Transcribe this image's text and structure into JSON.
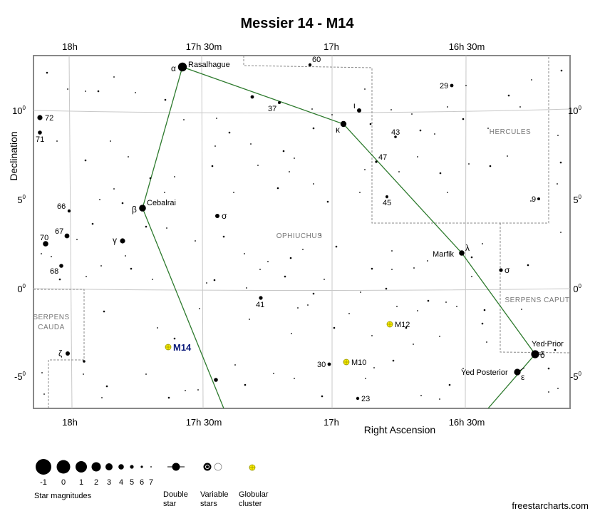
{
  "title": "Messier 14 - M14",
  "x_axis": {
    "label": "Right Ascension",
    "ticks": [
      {
        "label": "18h",
        "x": 98
      },
      {
        "label": "17h 30m",
        "x": 286
      },
      {
        "label": "17h",
        "x": 465
      },
      {
        "label": "16h 30m",
        "x": 655
      }
    ]
  },
  "y_axis": {
    "label": "Declination",
    "ticks": [
      {
        "label": "10",
        "y": 155
      },
      {
        "label": "5",
        "y": 280
      },
      {
        "label": "0",
        "y": 405
      },
      {
        "label": "-5",
        "y": 528
      }
    ],
    "degree_symbol": "0"
  },
  "constellations": [
    {
      "key": "ophiuchus",
      "lines": [
        "OPHIUCHUS"
      ]
    },
    {
      "key": "hercules",
      "lines": [
        "HERCULES"
      ]
    },
    {
      "key": "serpens-caput",
      "lines": [
        "SERPENS CAPUT"
      ]
    },
    {
      "key": "serpens-cauda",
      "lines": [
        "SERPENS",
        "CAUDA"
      ]
    }
  ],
  "star_labels": [
    {
      "key": "rasalhague",
      "text": "Rasalhague"
    },
    {
      "key": "alpha",
      "text": "α"
    },
    {
      "key": "cebalrai",
      "text": "Cebalrai"
    },
    {
      "key": "beta",
      "text": "β"
    },
    {
      "key": "marfik",
      "text": "Marfik"
    },
    {
      "key": "lambda",
      "text": "λ"
    },
    {
      "key": "yed-prior",
      "text": "Yed Prior"
    },
    {
      "key": "delta",
      "text": "δ"
    },
    {
      "key": "yed-posterior",
      "text": "Yed Posterior"
    },
    {
      "key": "epsilon",
      "text": "ε"
    },
    {
      "key": "kappa",
      "text": "κ"
    },
    {
      "key": "iota",
      "text": "ι"
    },
    {
      "key": "gamma",
      "text": "γ"
    },
    {
      "key": "sigma-oph",
      "text": "σ"
    },
    {
      "key": "sigma-ser",
      "text": "σ"
    },
    {
      "key": "zeta",
      "text": "ζ"
    },
    {
      "key": "n60",
      "text": "60"
    },
    {
      "key": "n37",
      "text": "37"
    },
    {
      "key": "n29",
      "text": "29"
    },
    {
      "key": "n43",
      "text": "43"
    },
    {
      "key": "n47",
      "text": "47"
    },
    {
      "key": "n45",
      "text": "45"
    },
    {
      "key": "n9",
      "text": "9"
    },
    {
      "key": "n72",
      "text": "72"
    },
    {
      "key": "n71",
      "text": "71"
    },
    {
      "key": "n66",
      "text": "66"
    },
    {
      "key": "n67",
      "text": "67"
    },
    {
      "key": "n70",
      "text": "70"
    },
    {
      "key": "n68",
      "text": "68"
    },
    {
      "key": "n41",
      "text": "41"
    },
    {
      "key": "n30",
      "text": "30"
    },
    {
      "key": "n23",
      "text": "23"
    }
  ],
  "deep_sky_objects": [
    {
      "key": "m14",
      "text": "M14",
      "type": "Globular cluster",
      "highlight": true
    },
    {
      "key": "m12",
      "text": "M12",
      "type": "Globular cluster",
      "highlight": false
    },
    {
      "key": "m10",
      "text": "M10",
      "type": "Globular cluster",
      "highlight": false
    }
  ],
  "legend": {
    "magnitudes_title": "Star magnitudes",
    "magnitudes": [
      "-1",
      "0",
      "1",
      "2",
      "3",
      "4",
      "5",
      "6",
      "7"
    ],
    "double_star": [
      "Double",
      "star"
    ],
    "variable_stars": [
      "Variable",
      "stars"
    ],
    "globular_cluster": [
      "Globular",
      "cluster"
    ]
  },
  "footer": "freestarcharts.com",
  "colors": {
    "frame": "#888888",
    "grid": "#c8c8c8",
    "boundary": "#888888",
    "stick_figure": "#2d7a2d",
    "cluster_fill": "#ffee00",
    "cluster_stroke": "#9a9a00",
    "m14_label": "#0a1a7a"
  }
}
